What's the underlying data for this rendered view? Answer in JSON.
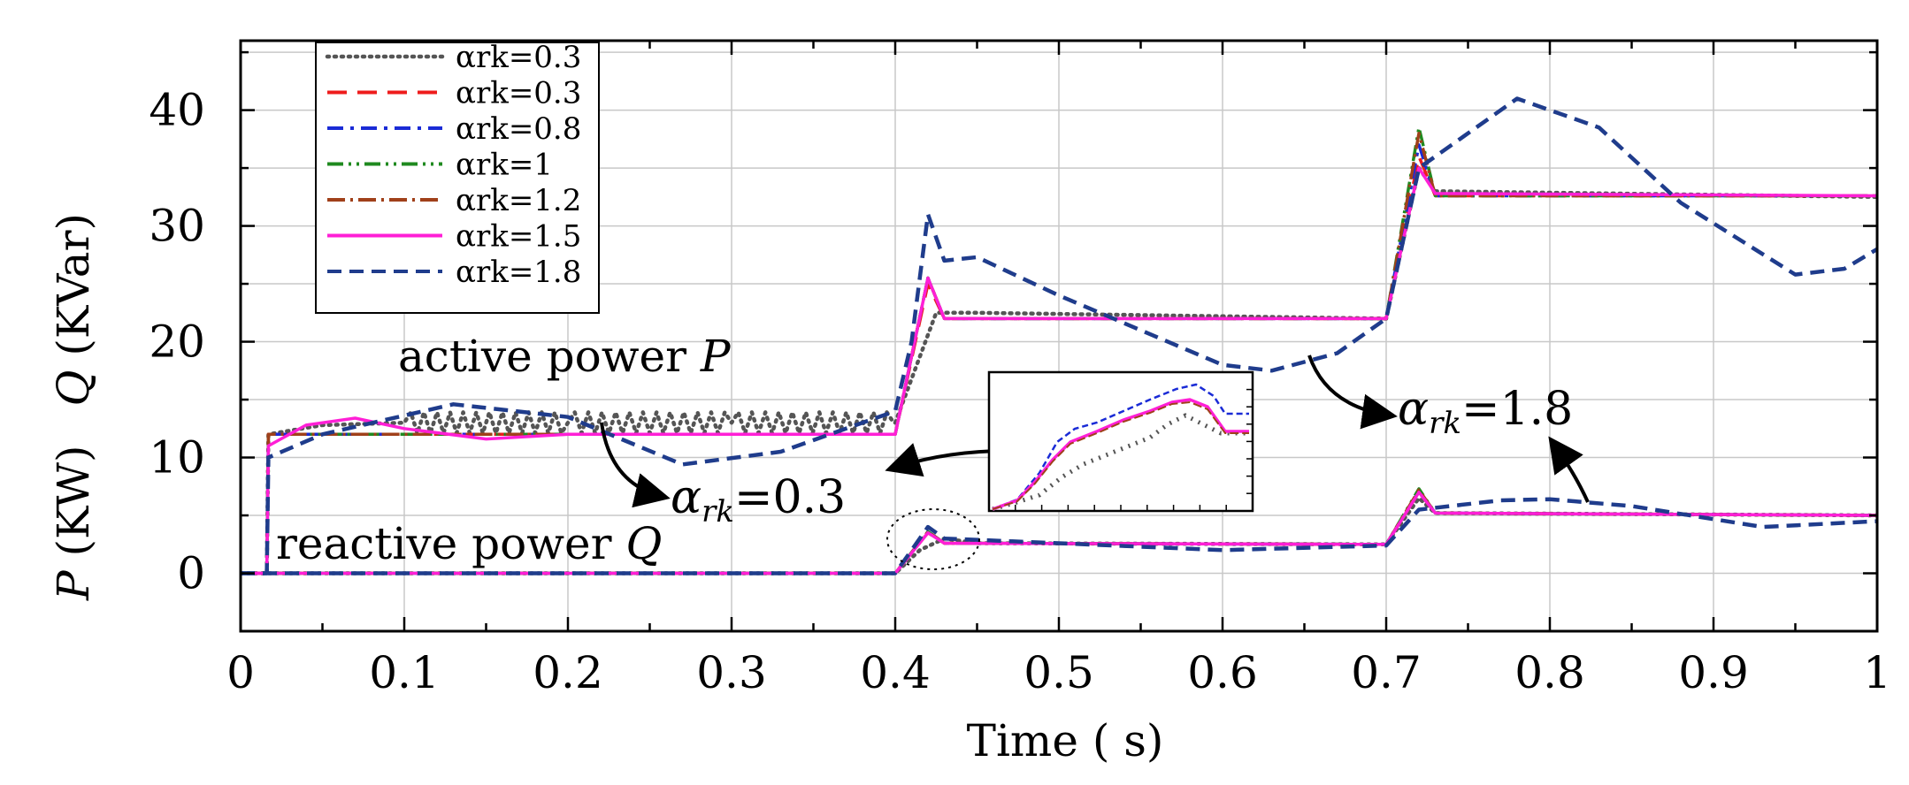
{
  "chart_data": {
    "type": "line",
    "xlabel": "Time ( s)",
    "ylabel_parts": [
      "P",
      " (KW)",
      "Q",
      " (KVar)"
    ],
    "xlim": [
      0,
      1
    ],
    "ylim": [
      -5,
      46
    ],
    "xticks": [
      0,
      0.1,
      0.2,
      0.3,
      0.4,
      0.5,
      0.6,
      0.7,
      0.8,
      0.9,
      1
    ],
    "xtick_labels": [
      "0",
      "0.1",
      "0.2",
      "0.3",
      "0.4",
      "0.5",
      "0.6",
      "0.7",
      "0.8",
      "0.9",
      "1"
    ],
    "yticks": [
      0,
      10,
      20,
      30,
      40
    ],
    "ytick_labels": [
      "0",
      "10",
      "20",
      "30",
      "40"
    ],
    "grid": true,
    "legend_position": "top-left",
    "series": [
      {
        "name": "αrk=0.3",
        "alpha": "0.3",
        "color": "#555555",
        "dash": "2 6",
        "active": [
          [
            0,
            0
          ],
          [
            0.016,
            0
          ],
          [
            0.017,
            12
          ],
          [
            0.05,
            12.8
          ],
          [
            0.1,
            13
          ],
          [
            0.2,
            13
          ],
          [
            0.3,
            13
          ],
          [
            0.399,
            13
          ],
          [
            0.4,
            13
          ],
          [
            0.425,
            22.5
          ],
          [
            0.45,
            22.5
          ],
          [
            0.7,
            22
          ],
          [
            0.72,
            35
          ],
          [
            0.73,
            33
          ],
          [
            1,
            32.5
          ]
        ],
        "reactive": [
          [
            0,
            0
          ],
          [
            0.4,
            0
          ],
          [
            0.415,
            2
          ],
          [
            0.43,
            3
          ],
          [
            0.45,
            2.6
          ],
          [
            0.7,
            2.5
          ],
          [
            0.72,
            6.5
          ],
          [
            0.73,
            5.2
          ],
          [
            1,
            5
          ]
        ]
      },
      {
        "name": "αrk=0.3",
        "alpha": "0.3",
        "color": "#ee1c1c",
        "dash": "22 12",
        "active": [
          [
            0,
            0
          ],
          [
            0.016,
            0
          ],
          [
            0.017,
            12
          ],
          [
            0.4,
            12
          ],
          [
            0.42,
            25
          ],
          [
            0.43,
            22
          ],
          [
            0.7,
            22
          ],
          [
            0.72,
            36
          ],
          [
            0.73,
            32.6
          ],
          [
            1,
            32.6
          ]
        ],
        "reactive": [
          [
            0,
            0
          ],
          [
            0.4,
            0
          ],
          [
            0.42,
            3.5
          ],
          [
            0.43,
            2.6
          ],
          [
            0.7,
            2.5
          ],
          [
            0.72,
            7
          ],
          [
            0.73,
            5.2
          ],
          [
            1,
            5
          ]
        ]
      },
      {
        "name": "αrk=0.8",
        "alpha": "0.8",
        "color": "#1a2bd6",
        "dash": "18 8 4 8",
        "active": [
          [
            0,
            0
          ],
          [
            0.016,
            0
          ],
          [
            0.017,
            12
          ],
          [
            0.4,
            12
          ],
          [
            0.42,
            25.5
          ],
          [
            0.43,
            22
          ],
          [
            0.7,
            22
          ],
          [
            0.72,
            37
          ],
          [
            0.73,
            32.6
          ],
          [
            1,
            32.6
          ]
        ],
        "reactive": [
          [
            0,
            0
          ],
          [
            0.4,
            0
          ],
          [
            0.42,
            3.6
          ],
          [
            0.43,
            2.6
          ],
          [
            0.7,
            2.5
          ],
          [
            0.72,
            7.1
          ],
          [
            0.73,
            5.2
          ],
          [
            1,
            5
          ]
        ]
      },
      {
        "name": "αrk=1",
        "alpha": "1",
        "color": "#1f8a1f",
        "dash": "18 6 3 6 3 6",
        "active": [
          [
            0,
            0
          ],
          [
            0.016,
            0
          ],
          [
            0.017,
            12
          ],
          [
            0.4,
            12
          ],
          [
            0.42,
            25.5
          ],
          [
            0.43,
            22
          ],
          [
            0.7,
            22
          ],
          [
            0.72,
            38.5
          ],
          [
            0.73,
            32.6
          ],
          [
            1,
            32.6
          ]
        ],
        "reactive": [
          [
            0,
            0
          ],
          [
            0.4,
            0
          ],
          [
            0.42,
            3.6
          ],
          [
            0.43,
            2.6
          ],
          [
            0.7,
            2.5
          ],
          [
            0.72,
            7.3
          ],
          [
            0.73,
            5.2
          ],
          [
            1,
            5
          ]
        ]
      },
      {
        "name": "αrk=1.2",
        "alpha": "1.2",
        "color": "#a0401a",
        "dash": "20 6 3 6",
        "active": [
          [
            0,
            0
          ],
          [
            0.016,
            0
          ],
          [
            0.017,
            12
          ],
          [
            0.4,
            12
          ],
          [
            0.42,
            25.5
          ],
          [
            0.43,
            22
          ],
          [
            0.7,
            22
          ],
          [
            0.72,
            38
          ],
          [
            0.73,
            32.6
          ],
          [
            1,
            32.6
          ]
        ],
        "reactive": [
          [
            0,
            0
          ],
          [
            0.4,
            0
          ],
          [
            0.42,
            3.6
          ],
          [
            0.43,
            2.6
          ],
          [
            0.7,
            2.5
          ],
          [
            0.72,
            7.2
          ],
          [
            0.73,
            5.2
          ],
          [
            1,
            5
          ]
        ]
      },
      {
        "name": "αrk=1.5",
        "alpha": "1.5",
        "color": "#ff1fd6",
        "dash": "",
        "active": [
          [
            0,
            0
          ],
          [
            0.016,
            0
          ],
          [
            0.017,
            11
          ],
          [
            0.04,
            12.8
          ],
          [
            0.07,
            13.4
          ],
          [
            0.1,
            12.5
          ],
          [
            0.15,
            11.6
          ],
          [
            0.2,
            12
          ],
          [
            0.3,
            12
          ],
          [
            0.4,
            12
          ],
          [
            0.42,
            25.5
          ],
          [
            0.43,
            22
          ],
          [
            0.7,
            22
          ],
          [
            0.72,
            35
          ],
          [
            0.73,
            32.8
          ],
          [
            1,
            32.6
          ]
        ],
        "reactive": [
          [
            0,
            0
          ],
          [
            0.4,
            0
          ],
          [
            0.42,
            3.5
          ],
          [
            0.43,
            2.6
          ],
          [
            0.7,
            2.5
          ],
          [
            0.72,
            7
          ],
          [
            0.73,
            5.2
          ],
          [
            1,
            5
          ]
        ]
      },
      {
        "name": "αrk=1.8",
        "alpha": "1.8",
        "color": "#1f3c8c",
        "dash": "16 9",
        "active": [
          [
            0,
            0
          ],
          [
            0.016,
            0
          ],
          [
            0.017,
            10
          ],
          [
            0.05,
            12
          ],
          [
            0.13,
            14.6
          ],
          [
            0.2,
            13.5
          ],
          [
            0.27,
            9.4
          ],
          [
            0.33,
            10.5
          ],
          [
            0.4,
            14
          ],
          [
            0.41,
            20
          ],
          [
            0.42,
            31
          ],
          [
            0.43,
            27
          ],
          [
            0.45,
            27.3
          ],
          [
            0.5,
            24
          ],
          [
            0.55,
            21
          ],
          [
            0.6,
            18
          ],
          [
            0.63,
            17.5
          ],
          [
            0.67,
            19
          ],
          [
            0.7,
            22
          ],
          [
            0.72,
            35
          ],
          [
            0.74,
            37
          ],
          [
            0.78,
            41
          ],
          [
            0.83,
            38.5
          ],
          [
            0.88,
            32
          ],
          [
            0.95,
            25.8
          ],
          [
            0.98,
            26.3
          ],
          [
            1,
            28
          ]
        ],
        "reactive": [
          [
            0,
            0
          ],
          [
            0.4,
            0
          ],
          [
            0.42,
            4
          ],
          [
            0.43,
            3
          ],
          [
            0.5,
            2.6
          ],
          [
            0.6,
            2
          ],
          [
            0.7,
            2.4
          ],
          [
            0.72,
            5.5
          ],
          [
            0.77,
            6.3
          ],
          [
            0.8,
            6.4
          ],
          [
            0.85,
            5.8
          ],
          [
            0.93,
            4
          ],
          [
            1,
            4.5
          ]
        ]
      }
    ],
    "annotations": [
      {
        "id": "active",
        "text": "active power ",
        "var": "P",
        "x": 0.1,
        "y": 18
      },
      {
        "id": "reactive",
        "text": "reactive power ",
        "var": "Q",
        "x": 0.022,
        "y": 1.8
      },
      {
        "id": "alpha03",
        "greek": "α",
        "sub": "rk",
        "text": "=0.3",
        "x": 0.265,
        "y": 5.9
      },
      {
        "id": "alpha18",
        "greek": "α",
        "sub": "rk",
        "text": "=1.8",
        "x": 0.708,
        "y": 12.9
      }
    ]
  }
}
